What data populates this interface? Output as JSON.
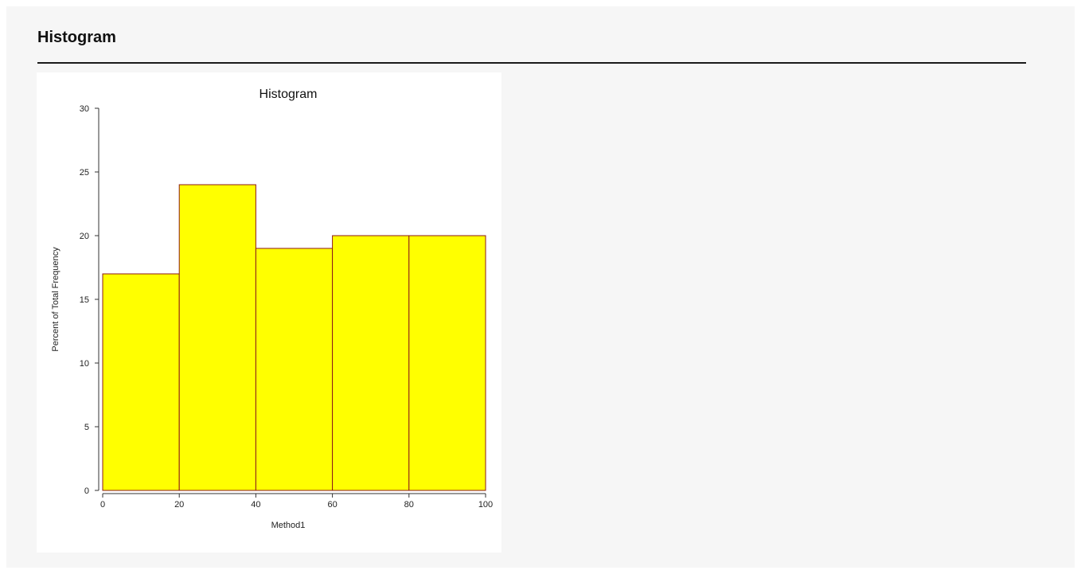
{
  "header": {
    "title": "Histogram"
  },
  "chart_data": {
    "type": "bar",
    "title": "Histogram",
    "xlabel": "Method1",
    "ylabel": "Percent of Total Frequency",
    "bins": [
      {
        "start": 0,
        "end": 20,
        "value": 17
      },
      {
        "start": 20,
        "end": 40,
        "value": 24
      },
      {
        "start": 40,
        "end": 60,
        "value": 19
      },
      {
        "start": 60,
        "end": 80,
        "value": 20
      },
      {
        "start": 80,
        "end": 100,
        "value": 20
      }
    ],
    "xlim": [
      0,
      100
    ],
    "ylim": [
      0,
      30
    ],
    "xticks": [
      0,
      20,
      40,
      60,
      80,
      100
    ],
    "yticks": [
      0,
      5,
      10,
      15,
      20,
      25,
      30
    ],
    "grid": false,
    "legend": "none",
    "colors": {
      "bar_fill": "#ffff00",
      "bar_stroke": "#8b1a1a",
      "axis": "#333333"
    }
  }
}
